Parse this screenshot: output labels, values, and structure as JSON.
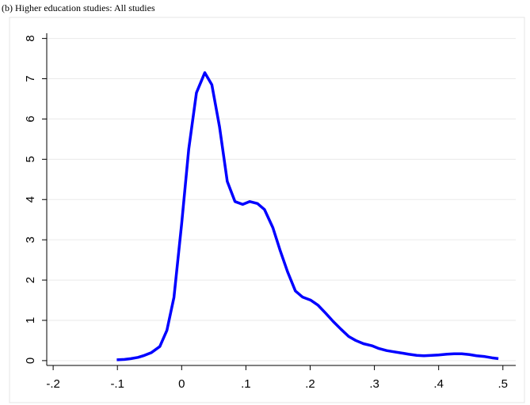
{
  "chart_data": {
    "type": "line",
    "title": "(b) Higher education studies: All studies",
    "x": [
      -0.101,
      -0.089,
      -0.079,
      -0.068,
      -0.058,
      -0.047,
      -0.034,
      -0.023,
      -0.012,
      0,
      0.011,
      0.023,
      0.036,
      0.047,
      0.059,
      0.071,
      0.083,
      0.095,
      0.106,
      0.118,
      0.129,
      0.142,
      0.153,
      0.165,
      0.177,
      0.188,
      0.201,
      0.212,
      0.224,
      0.236,
      0.248,
      0.26,
      0.271,
      0.283,
      0.296,
      0.307,
      0.319,
      0.33,
      0.342,
      0.353,
      0.366,
      0.377,
      0.389,
      0.4,
      0.413,
      0.424,
      0.436,
      0.448,
      0.459,
      0.472,
      0.483,
      0.493
    ],
    "series": [
      {
        "color": "#0000ff",
        "values": [
          0.02,
          0.03,
          0.05,
          0.08,
          0.13,
          0.2,
          0.35,
          0.75,
          1.57,
          3.4,
          5.25,
          6.65,
          7.15,
          6.85,
          5.8,
          4.45,
          3.95,
          3.88,
          3.95,
          3.9,
          3.75,
          3.3,
          2.75,
          2.2,
          1.73,
          1.58,
          1.5,
          1.38,
          1.18,
          0.97,
          0.78,
          0.6,
          0.5,
          0.42,
          0.37,
          0.3,
          0.25,
          0.22,
          0.19,
          0.16,
          0.13,
          0.12,
          0.13,
          0.14,
          0.16,
          0.17,
          0.17,
          0.15,
          0.12,
          0.1,
          0.07,
          0.05
        ]
      }
    ],
    "xlim": [
      -0.21,
      0.52
    ],
    "xticks": [
      {
        "value": -0.2,
        "label": "-.2"
      },
      {
        "value": -0.1,
        "label": "-.1"
      },
      0,
      {
        "value": 0.1,
        "label": ".1"
      },
      {
        "value": 0.2,
        "label": ".2"
      },
      {
        "value": 0.3,
        "label": ".3"
      },
      {
        "value": 0.4,
        "label": ".4"
      },
      {
        "value": 0.5,
        "label": ".5"
      }
    ],
    "ylim": [
      -0.12,
      8.13
    ],
    "yticks": [
      0,
      1,
      2,
      3,
      4,
      5,
      6,
      7,
      8
    ],
    "grid": true
  }
}
